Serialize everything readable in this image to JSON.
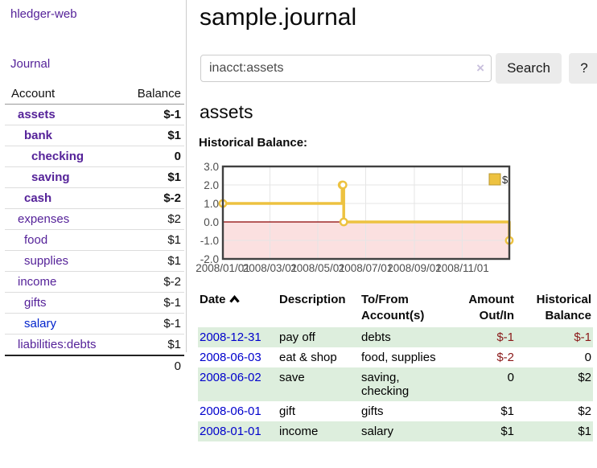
{
  "app_title": "hledger-web",
  "colors": {
    "link_purple": "#552299",
    "link_blue": "#0022cc",
    "date_link_blue": "#0000cc",
    "negative_strong": "#971616",
    "negative_soft": "#bd6d6d",
    "row_stripe_green": "#ddeedd",
    "chart_series_gold": "#edc240",
    "chart_negative_fill": "#fbe0e0",
    "chart_zero_line": "#8b0000"
  },
  "sidebar": {
    "nav": {
      "journal_label": "Journal"
    },
    "accounts_table": {
      "headers": {
        "account": "Account",
        "balance": "Balance"
      },
      "rows": [
        {
          "name": "assets",
          "level": 1,
          "bold": true,
          "balance": "$-1",
          "balance_style": "neg-strong"
        },
        {
          "name": "bank",
          "level": 2,
          "bold": true,
          "balance": "$1",
          "balance_style": "pos"
        },
        {
          "name": "checking",
          "level": 3,
          "bold": true,
          "balance": "0",
          "balance_style": "pos"
        },
        {
          "name": "saving",
          "level": 3,
          "bold": true,
          "balance": "$1",
          "balance_style": "pos"
        },
        {
          "name": "cash",
          "level": 2,
          "bold": true,
          "balance": "$-2",
          "balance_style": "neg-strong"
        },
        {
          "name": "expenses",
          "level": 1,
          "bold": false,
          "balance": "$2",
          "balance_style": "pos"
        },
        {
          "name": "food",
          "level": 2,
          "bold": false,
          "balance": "$1",
          "balance_style": "pos"
        },
        {
          "name": "supplies",
          "level": 2,
          "bold": false,
          "balance": "$1",
          "balance_style": "pos"
        },
        {
          "name": "income",
          "level": 1,
          "bold": false,
          "balance": "$-2",
          "balance_style": "neg-soft"
        },
        {
          "name": "gifts",
          "level": 2,
          "bold": false,
          "balance": "$-1",
          "balance_style": "neg-soft"
        },
        {
          "name": "salary",
          "level": 2,
          "bold": false,
          "link_color": "blue",
          "balance": "$-1",
          "balance_style": "neg-soft"
        },
        {
          "name": "liabilities:debts",
          "level": 1,
          "bold": false,
          "balance": "$1",
          "balance_style": "pos"
        }
      ],
      "total": "0"
    }
  },
  "header": {
    "title": "sample.journal"
  },
  "search": {
    "value": "inacct:assets",
    "clear_icon": "×",
    "search_button": "Search",
    "help_button": "?"
  },
  "account_page": {
    "heading": "assets",
    "chart_title": "Historical Balance:"
  },
  "chart_data": {
    "type": "line",
    "style": "step",
    "title": "Historical Balance",
    "series": [
      {
        "name": "$",
        "color": "#edc240",
        "points": [
          {
            "date": "2008-01-01",
            "value": 1
          },
          {
            "date": "2008-06-01",
            "value": 2
          },
          {
            "date": "2008-06-02",
            "value": 2
          },
          {
            "date": "2008-06-03",
            "value": 0
          },
          {
            "date": "2008-12-31",
            "value": -1
          }
        ]
      }
    ],
    "xlim": [
      "2008-01-01",
      "2008-12-31"
    ],
    "ylim": [
      -2,
      3
    ],
    "yticks": [
      3.0,
      2.0,
      1.0,
      0.0,
      -1.0,
      -2.0
    ],
    "xticks": [
      {
        "date": "2008-01-01",
        "label": "2008/01/01"
      },
      {
        "date": "2008-03-01",
        "label": "2008/03/01"
      },
      {
        "date": "2008-05-01",
        "label": "2008/05/01"
      },
      {
        "date": "2008-07-01",
        "label": "2008/07/01"
      },
      {
        "date": "2008-09-01",
        "label": "2008/09/01"
      },
      {
        "date": "2008-11-01",
        "label": "2008/11/01"
      }
    ],
    "grid": true,
    "legend": {
      "label": "$",
      "position": "top-right"
    },
    "negative_region_shaded": true
  },
  "register": {
    "headers": [
      {
        "lines": [
          "Date"
        ],
        "align": "left",
        "sortable": true,
        "sort": "ascending"
      },
      {
        "lines": [
          "Description"
        ],
        "align": "left"
      },
      {
        "lines": [
          "To/From",
          "Account(s)"
        ],
        "align": "left"
      },
      {
        "lines": [
          "Amount",
          "Out/In"
        ],
        "align": "right"
      },
      {
        "lines": [
          "Historical",
          "Balance"
        ],
        "align": "right"
      }
    ],
    "rows": [
      {
        "date": "2008-12-31",
        "description": "pay off",
        "accounts": "debts",
        "amount": "$-1",
        "amount_neg": true,
        "balance": "$-1",
        "balance_neg": true
      },
      {
        "date": "2008-06-03",
        "description": "eat & shop",
        "accounts": "food, supplies",
        "amount": "$-2",
        "amount_neg": true,
        "balance": "0",
        "balance_neg": false
      },
      {
        "date": "2008-06-02",
        "description": "save",
        "accounts": "saving, checking",
        "amount": "0",
        "amount_neg": false,
        "balance": "$2",
        "balance_neg": false
      },
      {
        "date": "2008-06-01",
        "description": "gift",
        "accounts": "gifts",
        "amount": "$1",
        "amount_neg": false,
        "balance": "$2",
        "balance_neg": false
      },
      {
        "date": "2008-01-01",
        "description": "income",
        "accounts": "salary",
        "amount": "$1",
        "amount_neg": false,
        "balance": "$1",
        "balance_neg": false
      }
    ]
  }
}
